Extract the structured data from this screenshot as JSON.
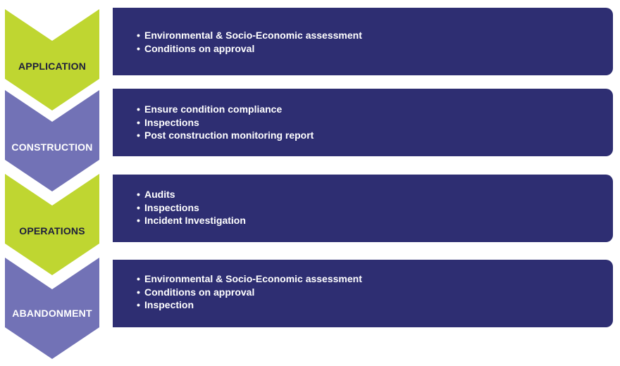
{
  "colors": {
    "green": "#bfd631",
    "purple_light": "#7272b6",
    "panel_navy": "#2e2e72",
    "label_dark": "#1e1e3c",
    "label_light": "#ffffff"
  },
  "bullet_glyph": "•",
  "stages": [
    {
      "name": "APPLICATION",
      "items": [
        "Environmental & Socio-Economic assessment",
        "Conditions on approval"
      ]
    },
    {
      "name": "CONSTRUCTION",
      "items": [
        "Ensure condition compliance",
        "Inspections",
        "Post construction monitoring report"
      ]
    },
    {
      "name": "OPERATIONS",
      "items": [
        "Audits",
        "Inspections",
        "Incident Investigation"
      ]
    },
    {
      "name": "ABANDONMENT",
      "items": [
        "Environmental & Socio-Economic assessment",
        "Conditions on approval",
        "Inspection"
      ]
    }
  ]
}
